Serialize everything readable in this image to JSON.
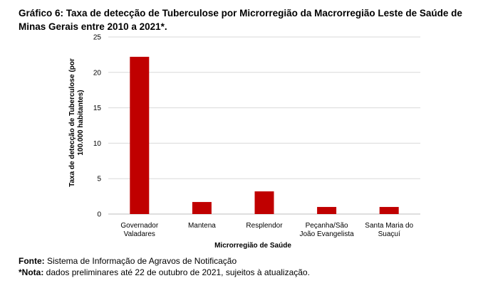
{
  "title": "Gráfico 6: Taxa de detecção de Tuberculose por Microrregião da Macrorregião Leste de Saúde de Minas Gerais entre 2010 a 2021*.",
  "chart_data": {
    "type": "bar",
    "categories": [
      [
        "Governador",
        "Valadares"
      ],
      [
        "Mantena"
      ],
      [
        "Resplendor"
      ],
      [
        "Peçanha/São",
        "João Evangelista"
      ],
      [
        "Santa Maria do",
        "Suaçuí"
      ]
    ],
    "values": [
      22.2,
      1.7,
      3.2,
      1.0,
      1.0
    ],
    "xlabel": "Microrregião de Saúde",
    "ylabel": "Taxa de detecção de Tuberculose (por 100.000 habitantes)",
    "ylim": [
      0,
      25
    ],
    "yticks": [
      "0",
      "5",
      "10",
      "15",
      "20",
      "25"
    ],
    "grid": true,
    "bar_color": "#c00000"
  },
  "footer": {
    "source_label": "Fonte:",
    "source_text": " Sistema de Informação de Agravos de Notificação",
    "note_label": "*Nota:",
    "note_text": " dados preliminares até 22 de outubro de 2021, sujeitos à atualização."
  }
}
